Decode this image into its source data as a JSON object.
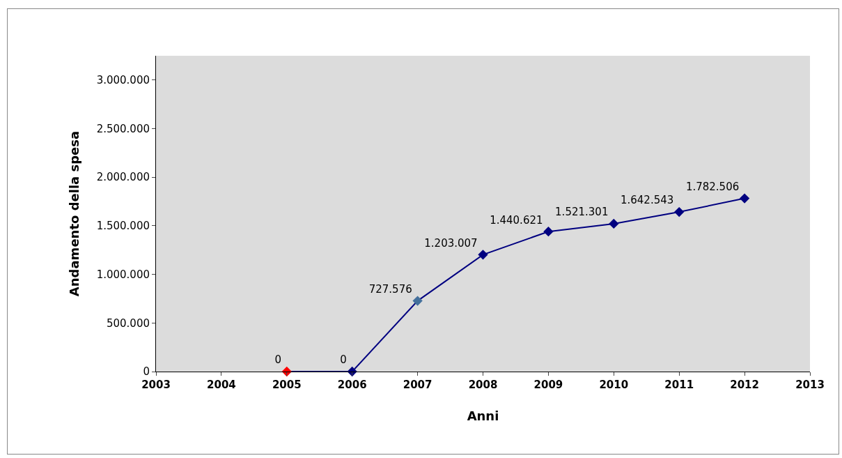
{
  "chart_data": {
    "type": "line",
    "xlabel": "Anni",
    "ylabel": "Andamento della spesa",
    "x": [
      2005,
      2006,
      2007,
      2008,
      2009,
      2010,
      2011,
      2012
    ],
    "series": [
      {
        "color": "#000080",
        "colors": [
          "#ff0000",
          "#000080",
          "#44709c",
          "#000080",
          "#000080",
          "#000080",
          "#000080",
          "#000080"
        ],
        "values": [
          0,
          0,
          727576,
          1203007,
          1440621,
          1521301,
          1642543,
          1782506
        ],
        "value_labels": [
          "0",
          "0",
          "727.576",
          "1.203.007",
          "1.440.621",
          "1.521.301",
          "1.642.543",
          "1.782.506"
        ]
      }
    ],
    "xlim": [
      2003,
      2013
    ],
    "xticks": [
      2003,
      2004,
      2005,
      2006,
      2007,
      2008,
      2009,
      2010,
      2011,
      2012,
      2013
    ],
    "ylim": [
      0,
      3250000
    ],
    "yticks": [
      {
        "value": 0,
        "label": "0"
      },
      {
        "value": 500000,
        "label": "500.000"
      },
      {
        "value": 1000000,
        "label": "1.000.000"
      },
      {
        "value": 1500000,
        "label": "1.500.000"
      },
      {
        "value": 2000000,
        "label": "2.000.000"
      },
      {
        "value": 2500000,
        "label": "2.500.000"
      },
      {
        "value": 3000000,
        "label": "3.000.000"
      }
    ],
    "grid": false,
    "marker": "diamond",
    "line_style": "solid"
  }
}
